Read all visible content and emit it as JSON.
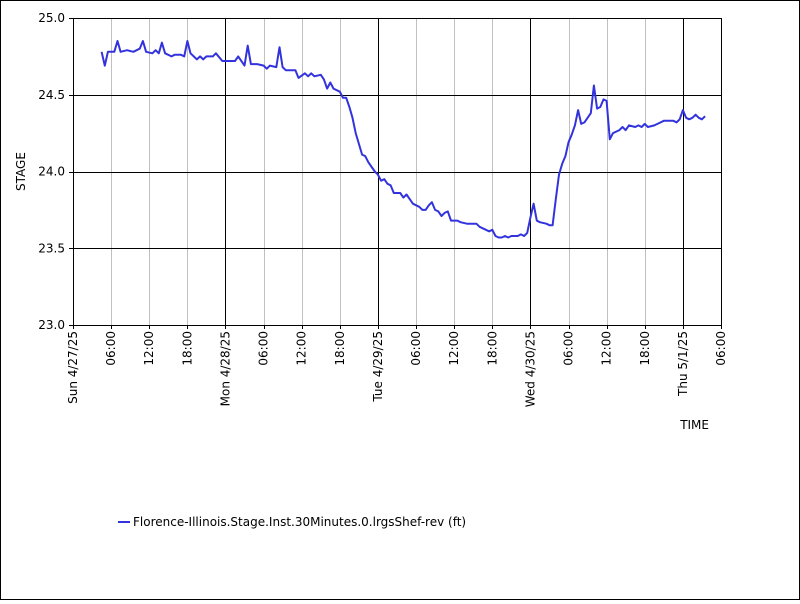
{
  "chart_data": {
    "type": "line",
    "xlabel": "TIME",
    "ylabel": "STAGE",
    "ylim": [
      23.0,
      25.0
    ],
    "y_ticks": [
      "23.0",
      "23.5",
      "24.0",
      "24.5",
      "25.0"
    ],
    "x_start": "2025-04-27T00:00",
    "x_end": "2025-05-01T06:00",
    "x_ticks": [
      {
        "t": "2025-04-27T00:00",
        "label": "Sun 4/27/25",
        "major": true
      },
      {
        "t": "2025-04-27T06:00",
        "label": "06:00",
        "major": false
      },
      {
        "t": "2025-04-27T12:00",
        "label": "12:00",
        "major": false
      },
      {
        "t": "2025-04-27T18:00",
        "label": "18:00",
        "major": false
      },
      {
        "t": "2025-04-28T00:00",
        "label": "Mon 4/28/25",
        "major": true
      },
      {
        "t": "2025-04-28T06:00",
        "label": "06:00",
        "major": false
      },
      {
        "t": "2025-04-28T12:00",
        "label": "12:00",
        "major": false
      },
      {
        "t": "2025-04-28T18:00",
        "label": "18:00",
        "major": false
      },
      {
        "t": "2025-04-29T00:00",
        "label": "Tue 4/29/25",
        "major": true
      },
      {
        "t": "2025-04-29T06:00",
        "label": "06:00",
        "major": false
      },
      {
        "t": "2025-04-29T12:00",
        "label": "12:00",
        "major": false
      },
      {
        "t": "2025-04-29T18:00",
        "label": "18:00",
        "major": false
      },
      {
        "t": "2025-04-30T00:00",
        "label": "Wed 4/30/25",
        "major": true
      },
      {
        "t": "2025-04-30T06:00",
        "label": "06:00",
        "major": false
      },
      {
        "t": "2025-04-30T12:00",
        "label": "12:00",
        "major": false
      },
      {
        "t": "2025-04-30T18:00",
        "label": "18:00",
        "major": false
      },
      {
        "t": "2025-05-01T00:00",
        "label": "Thu 5/1/25",
        "major": true
      },
      {
        "t": "2025-05-01T06:00",
        "label": "06:00",
        "major": false
      }
    ],
    "grid": true,
    "legend_position": "bottom-left",
    "series": [
      {
        "name": "Florence-Illinois.Stage.Inst.30Minutes.0.lrgsShef-rev (ft)",
        "color": "#3333dd",
        "points": [
          [
            "2025-04-27T04:30",
            24.78
          ],
          [
            "2025-04-27T05:00",
            24.69
          ],
          [
            "2025-04-27T05:30",
            24.78
          ],
          [
            "2025-04-27T06:30",
            24.78
          ],
          [
            "2025-04-27T07:00",
            24.85
          ],
          [
            "2025-04-27T07:30",
            24.78
          ],
          [
            "2025-04-27T08:30",
            24.79
          ],
          [
            "2025-04-27T09:30",
            24.78
          ],
          [
            "2025-04-27T10:30",
            24.8
          ],
          [
            "2025-04-27T11:00",
            24.85
          ],
          [
            "2025-04-27T11:30",
            24.78
          ],
          [
            "2025-04-27T12:30",
            24.77
          ],
          [
            "2025-04-27T13:00",
            24.79
          ],
          [
            "2025-04-27T13:30",
            24.77
          ],
          [
            "2025-04-27T14:00",
            24.84
          ],
          [
            "2025-04-27T14:30",
            24.77
          ],
          [
            "2025-04-27T15:30",
            24.75
          ],
          [
            "2025-04-27T16:00",
            24.76
          ],
          [
            "2025-04-27T17:00",
            24.76
          ],
          [
            "2025-04-27T17:30",
            24.75
          ],
          [
            "2025-04-27T18:00",
            24.85
          ],
          [
            "2025-04-27T18:30",
            24.77
          ],
          [
            "2025-04-27T19:30",
            24.73
          ],
          [
            "2025-04-27T20:00",
            24.75
          ],
          [
            "2025-04-27T20:30",
            24.73
          ],
          [
            "2025-04-27T21:00",
            24.75
          ],
          [
            "2025-04-27T22:00",
            24.75
          ],
          [
            "2025-04-27T22:30",
            24.77
          ],
          [
            "2025-04-27T23:30",
            24.72
          ],
          [
            "2025-04-28T00:30",
            24.72
          ],
          [
            "2025-04-28T01:30",
            24.72
          ],
          [
            "2025-04-28T02:00",
            24.75
          ],
          [
            "2025-04-28T03:00",
            24.69
          ],
          [
            "2025-04-28T03:30",
            24.82
          ],
          [
            "2025-04-28T04:00",
            24.7
          ],
          [
            "2025-04-28T05:00",
            24.7
          ],
          [
            "2025-04-28T06:00",
            24.69
          ],
          [
            "2025-04-28T06:30",
            24.67
          ],
          [
            "2025-04-28T07:00",
            24.69
          ],
          [
            "2025-04-28T08:00",
            24.68
          ],
          [
            "2025-04-28T08:30",
            24.81
          ],
          [
            "2025-04-28T09:00",
            24.68
          ],
          [
            "2025-04-28T09:30",
            24.66
          ],
          [
            "2025-04-28T11:00",
            24.66
          ],
          [
            "2025-04-28T11:30",
            24.61
          ],
          [
            "2025-04-28T12:30",
            24.64
          ],
          [
            "2025-04-28T13:00",
            24.62
          ],
          [
            "2025-04-28T13:30",
            24.64
          ],
          [
            "2025-04-28T14:00",
            24.62
          ],
          [
            "2025-04-28T15:00",
            24.63
          ],
          [
            "2025-04-28T15:30",
            24.6
          ],
          [
            "2025-04-28T16:00",
            24.54
          ],
          [
            "2025-04-28T16:30",
            24.58
          ],
          [
            "2025-04-28T17:00",
            24.54
          ],
          [
            "2025-04-28T18:00",
            24.52
          ],
          [
            "2025-04-28T18:30",
            24.48
          ],
          [
            "2025-04-28T19:00",
            24.48
          ],
          [
            "2025-04-28T19:30",
            24.42
          ],
          [
            "2025-04-28T20:00",
            24.35
          ],
          [
            "2025-04-28T20:30",
            24.25
          ],
          [
            "2025-04-28T21:00",
            24.18
          ],
          [
            "2025-04-28T21:30",
            24.11
          ],
          [
            "2025-04-28T22:00",
            24.1
          ],
          [
            "2025-04-28T22:30",
            24.06
          ],
          [
            "2025-04-28T23:30",
            24.0
          ],
          [
            "2025-04-29T00:00",
            23.98
          ],
          [
            "2025-04-29T00:30",
            23.94
          ],
          [
            "2025-04-29T01:00",
            23.95
          ],
          [
            "2025-04-29T01:30",
            23.92
          ],
          [
            "2025-04-29T02:00",
            23.91
          ],
          [
            "2025-04-29T02:30",
            23.86
          ],
          [
            "2025-04-29T03:30",
            23.86
          ],
          [
            "2025-04-29T04:00",
            23.83
          ],
          [
            "2025-04-29T04:30",
            23.85
          ],
          [
            "2025-04-29T05:00",
            23.82
          ],
          [
            "2025-04-29T05:30",
            23.79
          ],
          [
            "2025-04-29T06:30",
            23.77
          ],
          [
            "2025-04-29T07:00",
            23.75
          ],
          [
            "2025-04-29T07:30",
            23.75
          ],
          [
            "2025-04-29T08:00",
            23.78
          ],
          [
            "2025-04-29T08:30",
            23.8
          ],
          [
            "2025-04-29T09:00",
            23.75
          ],
          [
            "2025-04-29T09:30",
            23.74
          ],
          [
            "2025-04-29T10:00",
            23.71
          ],
          [
            "2025-04-29T10:30",
            23.73
          ],
          [
            "2025-04-29T11:00",
            23.74
          ],
          [
            "2025-04-29T11:30",
            23.68
          ],
          [
            "2025-04-29T12:30",
            23.68
          ],
          [
            "2025-04-29T13:00",
            23.67
          ],
          [
            "2025-04-29T14:00",
            23.66
          ],
          [
            "2025-04-29T15:00",
            23.66
          ],
          [
            "2025-04-29T15:30",
            23.66
          ],
          [
            "2025-04-29T16:00",
            23.64
          ],
          [
            "2025-04-29T17:00",
            23.62
          ],
          [
            "2025-04-29T17:30",
            23.61
          ],
          [
            "2025-04-29T18:00",
            23.62
          ],
          [
            "2025-04-29T18:30",
            23.58
          ],
          [
            "2025-04-29T19:00",
            23.57
          ],
          [
            "2025-04-29T19:30",
            23.57
          ],
          [
            "2025-04-29T20:00",
            23.58
          ],
          [
            "2025-04-29T20:30",
            23.57
          ],
          [
            "2025-04-29T21:00",
            23.58
          ],
          [
            "2025-04-29T22:00",
            23.58
          ],
          [
            "2025-04-29T22:30",
            23.59
          ],
          [
            "2025-04-29T23:00",
            23.58
          ],
          [
            "2025-04-29T23:30",
            23.6
          ],
          [
            "2025-04-30T00:00",
            23.7
          ],
          [
            "2025-04-30T00:30",
            23.79
          ],
          [
            "2025-04-30T01:00",
            23.68
          ],
          [
            "2025-04-30T01:30",
            23.67
          ],
          [
            "2025-04-30T02:30",
            23.66
          ],
          [
            "2025-04-30T03:00",
            23.65
          ],
          [
            "2025-04-30T03:30",
            23.65
          ],
          [
            "2025-04-30T04:00",
            23.82
          ],
          [
            "2025-04-30T04:30",
            23.98
          ],
          [
            "2025-04-30T05:00",
            24.05
          ],
          [
            "2025-04-30T05:30",
            24.1
          ],
          [
            "2025-04-30T06:00",
            24.19
          ],
          [
            "2025-04-30T06:30",
            24.24
          ],
          [
            "2025-04-30T07:00",
            24.3
          ],
          [
            "2025-04-30T07:30",
            24.4
          ],
          [
            "2025-04-30T08:00",
            24.31
          ],
          [
            "2025-04-30T08:30",
            24.32
          ],
          [
            "2025-04-30T09:00",
            24.35
          ],
          [
            "2025-04-30T09:30",
            24.38
          ],
          [
            "2025-04-30T10:00",
            24.56
          ],
          [
            "2025-04-30T10:30",
            24.41
          ],
          [
            "2025-04-30T11:00",
            24.42
          ],
          [
            "2025-04-30T11:30",
            24.47
          ],
          [
            "2025-04-30T12:00",
            24.46
          ],
          [
            "2025-04-30T12:30",
            24.21
          ],
          [
            "2025-04-30T13:00",
            24.25
          ],
          [
            "2025-04-30T14:00",
            24.27
          ],
          [
            "2025-04-30T14:30",
            24.29
          ],
          [
            "2025-04-30T15:00",
            24.27
          ],
          [
            "2025-04-30T15:30",
            24.3
          ],
          [
            "2025-04-30T16:30",
            24.29
          ],
          [
            "2025-04-30T17:00",
            24.3
          ],
          [
            "2025-04-30T17:30",
            24.29
          ],
          [
            "2025-04-30T18:00",
            24.31
          ],
          [
            "2025-04-30T18:30",
            24.29
          ],
          [
            "2025-04-30T19:30",
            24.3
          ],
          [
            "2025-04-30T20:30",
            24.32
          ],
          [
            "2025-04-30T21:00",
            24.33
          ],
          [
            "2025-04-30T22:30",
            24.33
          ],
          [
            "2025-04-30T23:00",
            24.32
          ],
          [
            "2025-04-30T23:30",
            24.34
          ],
          [
            "2025-05-01T00:00",
            24.4
          ],
          [
            "2025-05-01T00:30",
            24.35
          ],
          [
            "2025-05-01T01:00",
            24.34
          ],
          [
            "2025-05-01T01:30",
            24.35
          ],
          [
            "2025-05-01T02:00",
            24.37
          ],
          [
            "2025-05-01T02:30",
            24.35
          ],
          [
            "2025-05-01T03:00",
            24.34
          ],
          [
            "2025-05-01T03:30",
            24.36
          ]
        ]
      }
    ]
  }
}
